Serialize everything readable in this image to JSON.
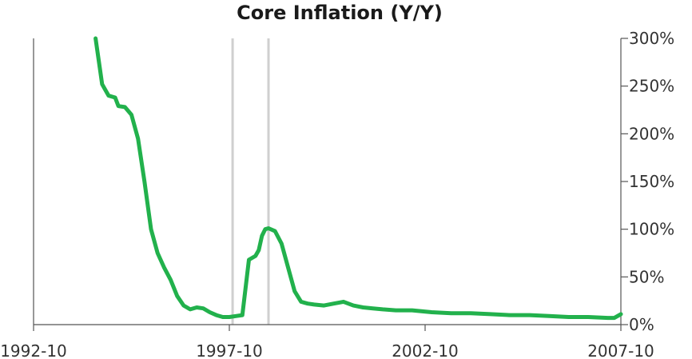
{
  "chart_data": {
    "type": "line",
    "title": "Core Inflation (Y/Y)",
    "xlabel": "",
    "ylabel": "",
    "x_range": [
      "1992-10",
      "2007-10"
    ],
    "x_ticks": [
      "1992-10",
      "1997-10",
      "2002-10",
      "2007-10"
    ],
    "ylim": [
      0,
      300
    ],
    "y_ticks": [
      0,
      50,
      100,
      150,
      200,
      250,
      300
    ],
    "y_tick_labels": [
      "0%",
      "50%",
      "100%",
      "150%",
      "200%",
      "250%",
      "300%"
    ],
    "y_axis_side": "right",
    "grid": false,
    "legend": "none",
    "reference_lines_x": [
      "1997-11",
      "1998-10"
    ],
    "series": [
      {
        "color": "#22b14c",
        "x": [
          "1994-05",
          "1994-07",
          "1994-09",
          "1994-11",
          "1994-12",
          "1995-02",
          "1995-04",
          "1995-06",
          "1995-08",
          "1995-10",
          "1995-12",
          "1996-02",
          "1996-04",
          "1996-06",
          "1996-08",
          "1996-10",
          "1996-12",
          "1997-02",
          "1997-04",
          "1997-06",
          "1997-08",
          "1997-10",
          "1997-12",
          "1998-02",
          "1998-04",
          "1998-06",
          "1998-07",
          "1998-08",
          "1998-09",
          "1998-10",
          "1998-12",
          "1999-02",
          "1999-04",
          "1999-06",
          "1999-08",
          "1999-10",
          "1999-12",
          "2000-03",
          "2000-06",
          "2000-09",
          "2000-12",
          "2001-03",
          "2001-06",
          "2001-09",
          "2002-01",
          "2002-06",
          "2002-12",
          "2003-06",
          "2003-12",
          "2004-06",
          "2004-12",
          "2005-06",
          "2005-12",
          "2006-06",
          "2006-12",
          "2007-06",
          "2007-08",
          "2007-10"
        ],
        "values": [
          300,
          252,
          240,
          238,
          229,
          228,
          220,
          195,
          150,
          100,
          75,
          60,
          47,
          30,
          20,
          16,
          18,
          17,
          13,
          10,
          8,
          8,
          9,
          10,
          68,
          72,
          78,
          93,
          100,
          101,
          98,
          85,
          60,
          35,
          24,
          22,
          21,
          20,
          22,
          24,
          20,
          18,
          17,
          16,
          15,
          15,
          13,
          12,
          12,
          11,
          10,
          10,
          9,
          8,
          8,
          7,
          7,
          11
        ]
      }
    ]
  }
}
